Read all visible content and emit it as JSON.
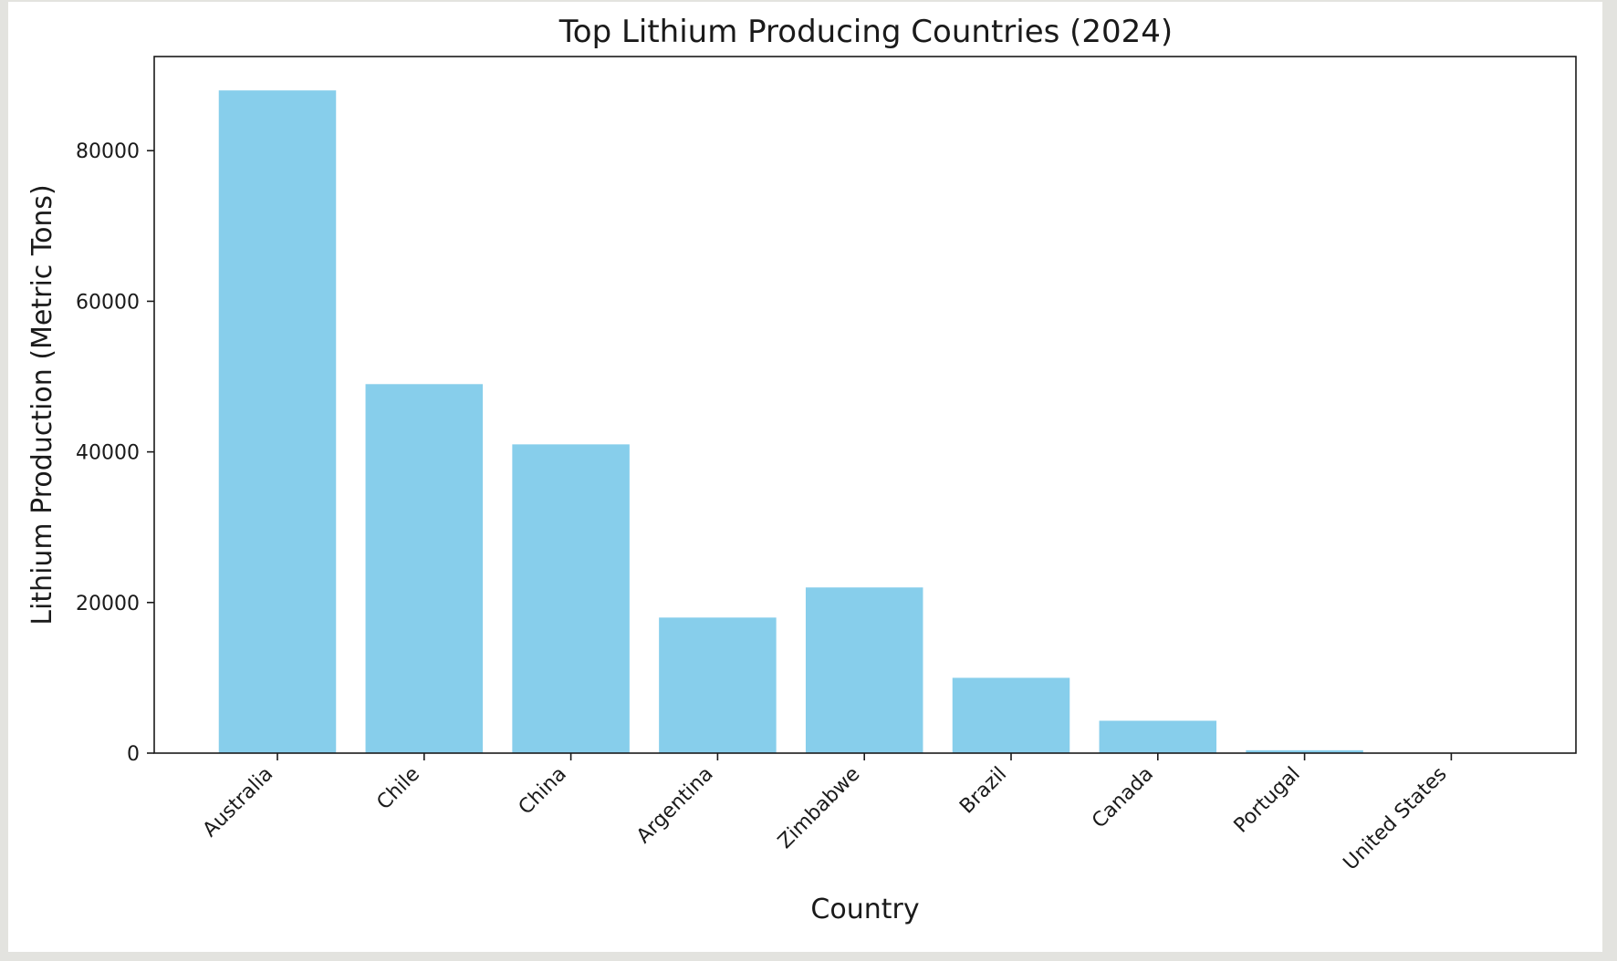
{
  "chart_data": {
    "type": "bar",
    "title": "Top Lithium Producing Countries (2024)",
    "xlabel": "Country",
    "ylabel": "Lithium Production (Metric Tons)",
    "categories": [
      "Australia",
      "Chile",
      "China",
      "Argentina",
      "Zimbabwe",
      "Brazil",
      "Canada",
      "Portugal",
      "United States"
    ],
    "values": [
      88000,
      49000,
      41000,
      18000,
      22000,
      10000,
      4300,
      380,
      0
    ],
    "ylim": [
      0,
      92500
    ],
    "yticks": [
      0,
      20000,
      40000,
      60000,
      80000
    ],
    "ytick_labels": [
      "0",
      "20000",
      "40000",
      "60000",
      "80000"
    ],
    "bar_color": "#87ceeb",
    "grid": false,
    "legend": "none"
  }
}
